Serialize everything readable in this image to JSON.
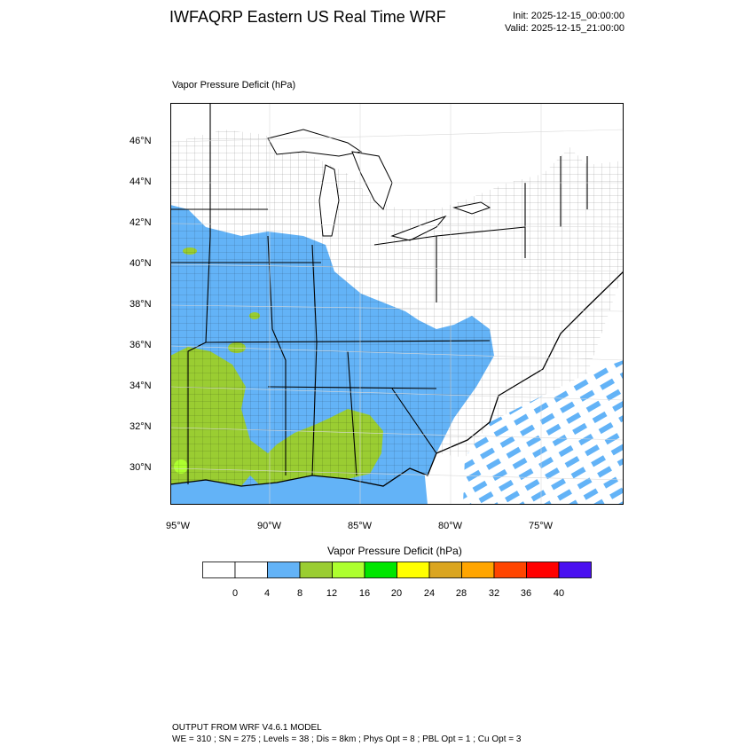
{
  "header": {
    "title": "IWFAQRP Eastern US Real Time WRF",
    "init": "Init: 2025-12-15_00:00:00",
    "valid": "Valid: 2025-12-15_21:00:00"
  },
  "plot": {
    "label": "Vapor Pressure Deficit   (hPa)",
    "lat_labels": [
      "46°N",
      "44°N",
      "42°N",
      "40°N",
      "38°N",
      "36°N",
      "34°N",
      "32°N",
      "30°N"
    ],
    "lon_labels": [
      "95°W",
      "90°W",
      "85°W",
      "80°W",
      "75°W"
    ]
  },
  "colorbar": {
    "title": "Vapor Pressure Deficit  (hPa)",
    "labels": [
      "0",
      "4",
      "8",
      "12",
      "16",
      "20",
      "24",
      "28",
      "32",
      "36",
      "40"
    ],
    "colors": [
      "#ffffff",
      "#ffffff",
      "#63b3f7",
      "#9acd32",
      "#adff2f",
      "#00e600",
      "#ffff00",
      "#daa520",
      "#ffa500",
      "#ff4500",
      "#ff0000",
      "#4a10f0"
    ]
  },
  "footer": {
    "line1": "OUTPUT FROM WRF V4.6.1 MODEL",
    "line2": "WE = 310 ; SN = 275 ; Levels = 38 ; Dis = 8km ; Phys Opt = 8 ; PBL Opt = 1 ; Cu Opt = 3"
  }
}
